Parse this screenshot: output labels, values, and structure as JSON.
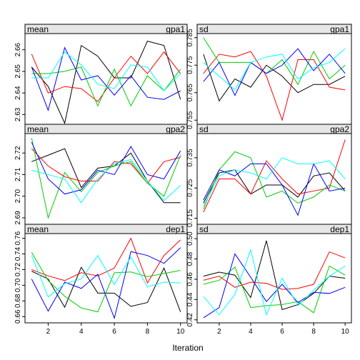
{
  "chart_data": {
    "type": "line",
    "xlabel": "Iteration",
    "x": [
      1,
      2,
      3,
      4,
      5,
      6,
      7,
      8,
      9,
      10
    ],
    "x_ticks": [
      2,
      4,
      6,
      8,
      10
    ],
    "xlim": [
      0.6,
      10.4
    ],
    "series_colors": [
      "#000000",
      "#FF0000",
      "#00CD00",
      "#0000FF",
      "#00FFFF"
    ],
    "grid": false,
    "legend": "none",
    "panels": [
      {
        "stat": "mean",
        "variable": "gpa1",
        "ylim": [
          2.6255,
          2.6675
        ],
        "y_ticks": [
          2.63,
          2.64,
          2.65,
          2.66
        ],
        "y_tick_labels": [
          "2.63",
          "2.64",
          "2.65",
          "2.66"
        ],
        "series": [
          [
            2.652,
            2.643,
            2.626,
            2.662,
            2.657,
            2.647,
            2.647,
            2.664,
            2.662,
            2.637
          ],
          [
            2.658,
            2.64,
            2.643,
            2.642,
            2.636,
            2.647,
            2.657,
            2.649,
            2.659,
            2.649
          ],
          [
            2.649,
            2.649,
            2.65,
            2.652,
            2.634,
            2.651,
            2.634,
            2.648,
            2.641,
            2.651
          ],
          [
            2.652,
            2.632,
            2.661,
            2.646,
            2.648,
            2.639,
            2.648,
            2.638,
            2.637,
            2.641
          ],
          [
            2.647,
            2.647,
            2.659,
            2.653,
            2.644,
            2.642,
            2.653,
            2.652,
            2.641,
            2.649
          ]
        ]
      },
      {
        "stat": "sd",
        "variable": "gpa1",
        "ylim": [
          0.7535,
          0.7865
        ],
        "y_ticks": [
          0.755,
          0.765,
          0.775,
          0.785
        ],
        "y_tick_labels": [
          "0.755",
          "0.765",
          "0.775",
          "0.785"
        ],
        "series": [
          [
            0.779,
            0.762,
            0.77,
            0.767,
            0.775,
            0.771,
            0.765,
            0.768,
            0.768,
            0.771
          ],
          [
            0.772,
            0.779,
            0.778,
            0.78,
            0.771,
            0.755,
            0.777,
            0.777,
            0.767,
            0.766
          ],
          [
            0.785,
            0.776,
            0.776,
            0.776,
            0.772,
            0.777,
            0.768,
            0.78,
            0.77,
            0.775
          ],
          [
            0.769,
            0.776,
            0.764,
            0.776,
            0.772,
            0.775,
            0.781,
            0.773,
            0.779,
            0.772
          ],
          [
            0.776,
            0.771,
            0.766,
            0.776,
            0.778,
            0.779,
            0.77,
            0.774,
            0.776,
            0.781
          ]
        ]
      },
      {
        "stat": "mean",
        "variable": "gpa2",
        "ylim": [
          2.687,
          2.729
        ],
        "y_ticks": [
          2.69,
          2.7,
          2.71,
          2.72
        ],
        "y_tick_labels": [
          "2.69",
          "2.70",
          "2.71",
          "2.72"
        ],
        "series": [
          [
            2.716,
            2.719,
            2.722,
            2.704,
            2.713,
            2.714,
            2.72,
            2.707,
            2.697,
            2.697
          ],
          [
            2.722,
            2.714,
            2.709,
            2.707,
            2.707,
            2.716,
            2.715,
            2.706,
            2.716,
            2.718
          ],
          [
            2.727,
            2.69,
            2.711,
            2.702,
            2.711,
            2.714,
            2.716,
            2.706,
            2.7,
            2.719
          ],
          [
            2.725,
            2.708,
            2.701,
            2.703,
            2.712,
            2.71,
            2.723,
            2.71,
            2.708,
            2.721
          ],
          [
            2.712,
            2.71,
            2.708,
            2.697,
            2.708,
            2.715,
            2.717,
            2.707,
            2.698,
            2.705
          ]
        ]
      },
      {
        "stat": "sd",
        "variable": "gpa2",
        "ylim": [
          0.713,
          0.743
        ],
        "y_ticks": [
          0.715,
          0.725,
          0.735
        ],
        "y_tick_labels": [
          "0.715",
          "0.725",
          "0.735"
        ],
        "series": [
          [
            0.72,
            0.73,
            0.731,
            0.723,
            0.726,
            0.726,
            0.722,
            0.729,
            0.73,
            0.724
          ],
          [
            0.717,
            0.728,
            0.728,
            0.723,
            0.734,
            0.728,
            0.723,
            0.724,
            0.725,
            0.741
          ],
          [
            0.718,
            0.731,
            0.737,
            0.735,
            0.722,
            0.724,
            0.72,
            0.722,
            0.726,
            0.724
          ],
          [
            0.721,
            0.731,
            0.729,
            0.733,
            0.733,
            0.726,
            0.716,
            0.733,
            0.724,
            0.725
          ],
          [
            0.719,
            0.729,
            0.731,
            0.73,
            0.728,
            0.735,
            0.733,
            0.733,
            0.734,
            0.728
          ]
        ]
      },
      {
        "stat": "mean",
        "variable": "dep1",
        "ylim": [
          0.652,
          0.766
        ],
        "y_ticks": [
          0.66,
          0.68,
          0.7,
          0.72,
          0.74,
          0.76
        ],
        "y_tick_labels": [
          "0.66",
          "0.68",
          "0.70",
          "0.72",
          "0.74",
          "0.76"
        ],
        "series": [
          [
            0.718,
            0.708,
            0.672,
            0.723,
            0.69,
            0.69,
            0.673,
            0.678,
            0.722,
            0.666
          ],
          [
            0.72,
            0.712,
            0.706,
            0.716,
            0.712,
            0.722,
            0.76,
            0.703,
            0.738,
            0.758
          ],
          [
            0.742,
            0.706,
            0.686,
            0.671,
            0.666,
            0.716,
            0.717,
            0.711,
            0.715,
            0.719
          ],
          [
            0.708,
            0.667,
            0.704,
            0.696,
            0.714,
            0.658,
            0.743,
            0.738,
            0.728,
            0.748
          ],
          [
            0.738,
            0.685,
            0.702,
            0.708,
            0.738,
            0.701,
            0.736,
            0.698,
            0.704,
            0.703
          ]
        ]
      },
      {
        "stat": "sd",
        "variable": "dep1",
        "ylim": [
          0.417,
          0.505
        ],
        "y_ticks": [
          0.42,
          0.44,
          0.46,
          0.48,
          0.5
        ],
        "y_tick_labels": [
          "0.42",
          "0.44",
          "0.46",
          "0.48",
          "0.50"
        ],
        "series": [
          [
            0.463,
            0.467,
            0.464,
            0.442,
            0.498,
            0.43,
            0.435,
            0.446,
            0.463,
            0.461
          ],
          [
            0.459,
            0.463,
            0.452,
            0.457,
            0.456,
            0.45,
            0.451,
            0.455,
            0.487,
            0.481
          ],
          [
            0.455,
            0.459,
            0.472,
            0.432,
            0.434,
            0.435,
            0.438,
            0.427,
            0.473,
            0.464
          ],
          [
            0.422,
            0.432,
            0.485,
            0.462,
            0.438,
            0.455,
            0.437,
            0.447,
            0.446,
            0.452
          ],
          [
            0.443,
            0.425,
            0.445,
            0.489,
            0.425,
            0.461,
            0.434,
            0.449,
            0.463,
            0.473
          ]
        ]
      }
    ]
  }
}
